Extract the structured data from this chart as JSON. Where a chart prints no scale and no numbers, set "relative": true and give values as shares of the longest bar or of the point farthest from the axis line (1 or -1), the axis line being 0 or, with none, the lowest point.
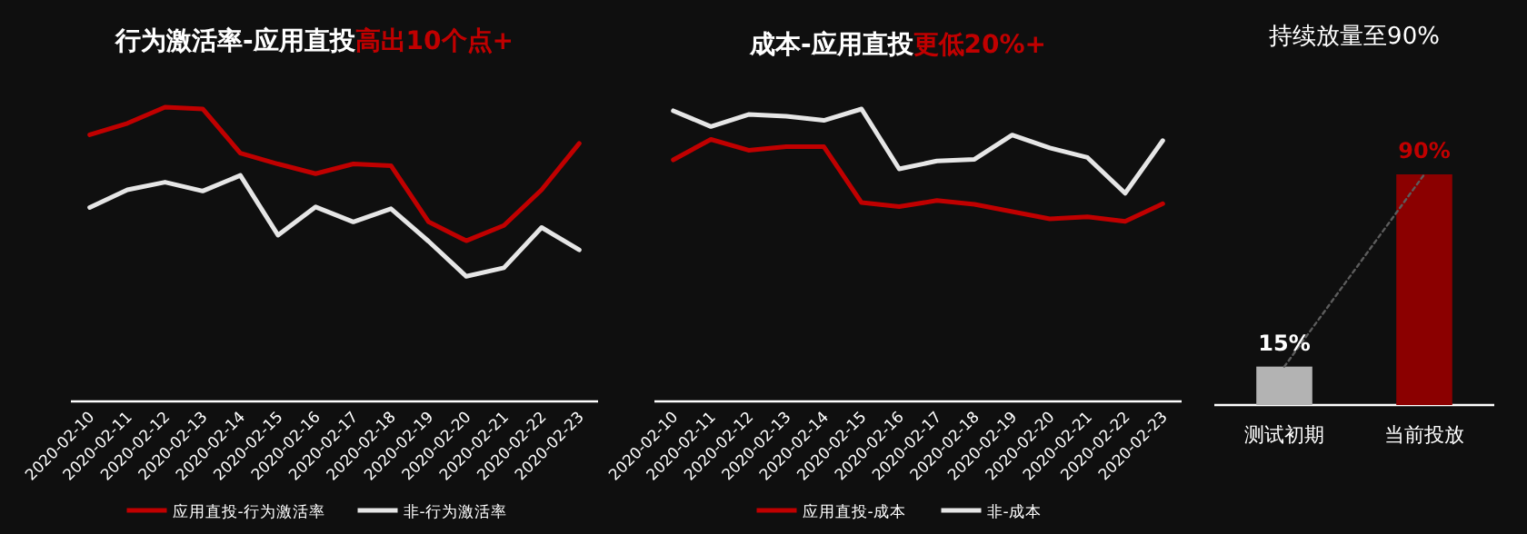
{
  "chart_data": [
    {
      "type": "line",
      "title": "行为激活率-应用直投",
      "annotations": [
        "高出10个点+"
      ],
      "relative": true,
      "legend": "bottom",
      "grid": false,
      "categories": [
        "2020-02-10",
        "2020-02-11",
        "2020-02-12",
        "2020-02-13",
        "2020-02-14",
        "2020-02-15",
        "2020-02-16",
        "2020-02-17",
        "2020-02-18",
        "2020-02-19",
        "2020-02-20",
        "2020-02-21",
        "2020-02-22",
        "2020-02-23"
      ],
      "series": [
        {
          "name": "应用直投-行为激活率",
          "color": "#c00000",
          "values": [
            0.906,
            0.945,
            1,
            0.994,
            0.844,
            0.807,
            0.774,
            0.807,
            0.801,
            0.61,
            0.546,
            0.598,
            0.719,
            0.877
          ]
        },
        {
          "name": "非-行为激活率",
          "color": "#e6e6e6",
          "values": [
            0.659,
            0.719,
            0.745,
            0.715,
            0.768,
            0.565,
            0.661,
            0.61,
            0.655,
            0.544,
            0.425,
            0.454,
            0.591,
            0.515
          ]
        }
      ]
    },
    {
      "type": "line",
      "title": "成本-应用直投",
      "annotations": [
        "更低20%+"
      ],
      "relative": true,
      "legend": "bottom",
      "grid": false,
      "categories": [
        "2020-02-10",
        "2020-02-11",
        "2020-02-12",
        "2020-02-13",
        "2020-02-14",
        "2020-02-15",
        "2020-02-16",
        "2020-02-17",
        "2020-02-18",
        "2020-02-19",
        "2020-02-20",
        "2020-02-21",
        "2020-02-22",
        "2020-02-23"
      ],
      "series": [
        {
          "name": "应用直投-成本",
          "color": "#c00000",
          "values": [
            0.826,
            0.896,
            0.859,
            0.871,
            0.871,
            0.68,
            0.666,
            0.687,
            0.674,
            0.649,
            0.624,
            0.631,
            0.616,
            0.676
          ]
        },
        {
          "name": "非-成本",
          "color": "#e6e6e6",
          "values": [
            0.994,
            0.94,
            0.981,
            0.975,
            0.961,
            1,
            0.795,
            0.822,
            0.828,
            0.911,
            0.867,
            0.834,
            0.712,
            0.892
          ]
        }
      ]
    },
    {
      "type": "bar",
      "title": "持续放量至90%",
      "grid": false,
      "categories": [
        "测试初期",
        "当前投放"
      ],
      "series": [
        {
          "colors": [
            "#b3b3b3",
            "#8b0000"
          ],
          "values": [
            15,
            90
          ],
          "value_labels": [
            "15%",
            "90%"
          ]
        },
        {
          "type": "line",
          "color": "#5c5c5c",
          "line_style": "dotted",
          "values": [
            15,
            90
          ]
        }
      ]
    }
  ]
}
